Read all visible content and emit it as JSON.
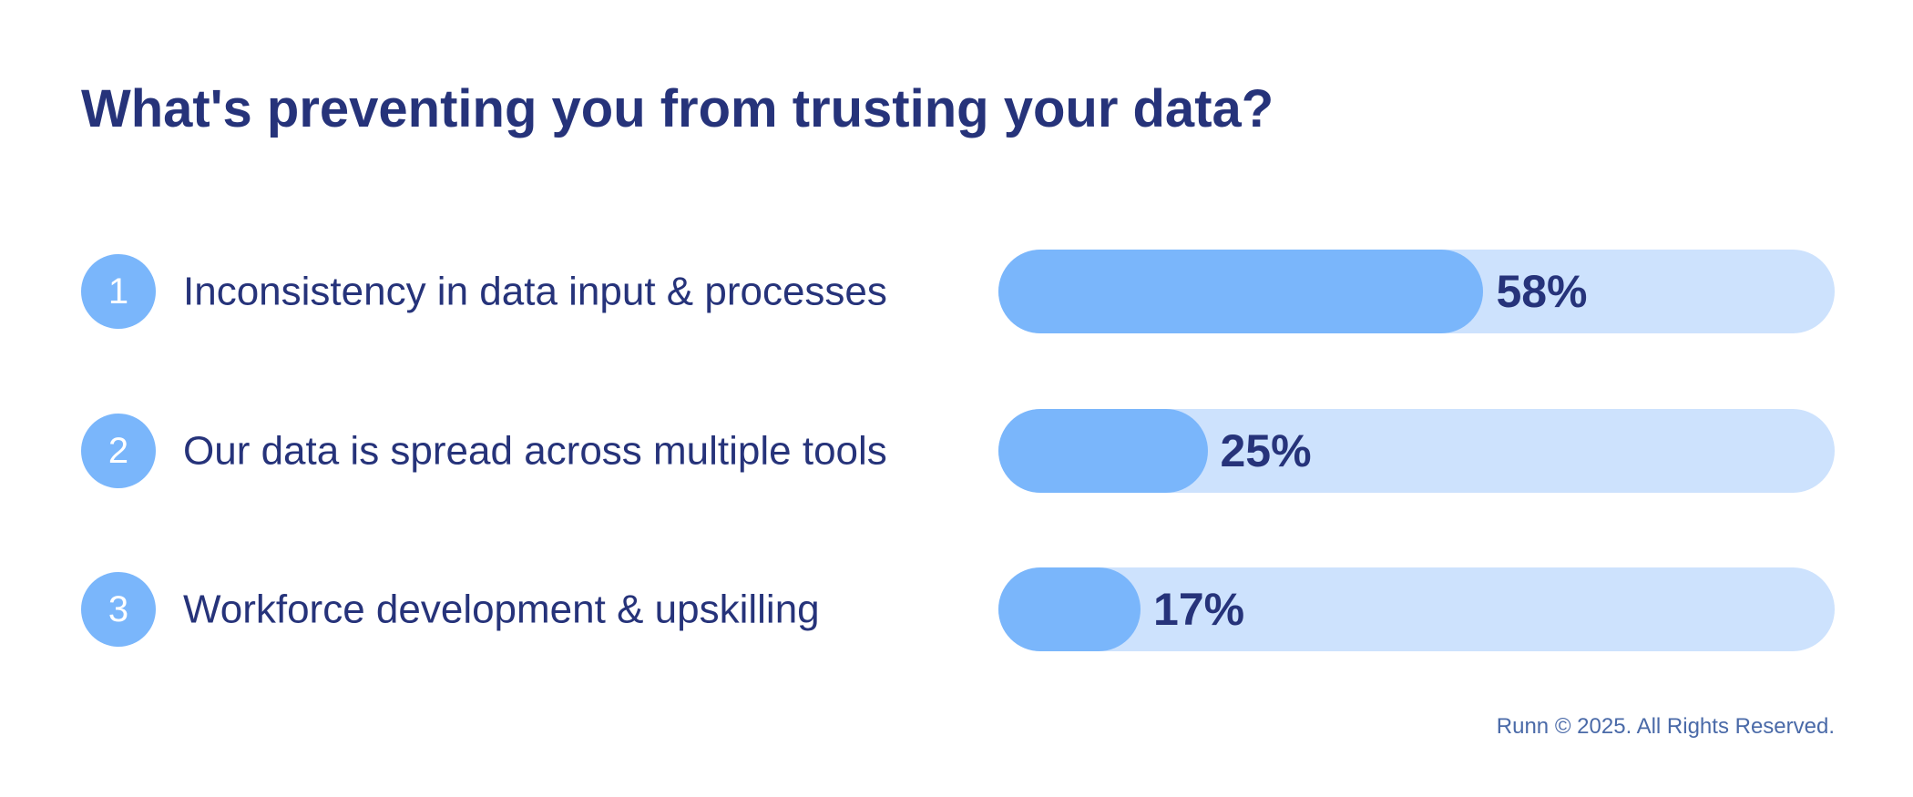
{
  "chart_data": {
    "type": "bar",
    "orientation": "horizontal",
    "title": "What's preventing you from trusting your data?",
    "categories": [
      "Inconsistency in data input & processes",
      "Our data is spread across multiple tools",
      "Workforce development & upskilling"
    ],
    "ranks": [
      "1",
      "2",
      "3"
    ],
    "values": [
      58,
      25,
      17
    ],
    "value_labels": [
      "58%",
      "25%",
      "17%"
    ],
    "unit": "%",
    "xlim": [
      0,
      100
    ],
    "grid": false,
    "legend": "none",
    "colors": {
      "fill": "#7ab6fb",
      "track": "#cde2fd",
      "text": "#26337a"
    }
  },
  "footer": "Runn © 2025. All Rights Reserved."
}
